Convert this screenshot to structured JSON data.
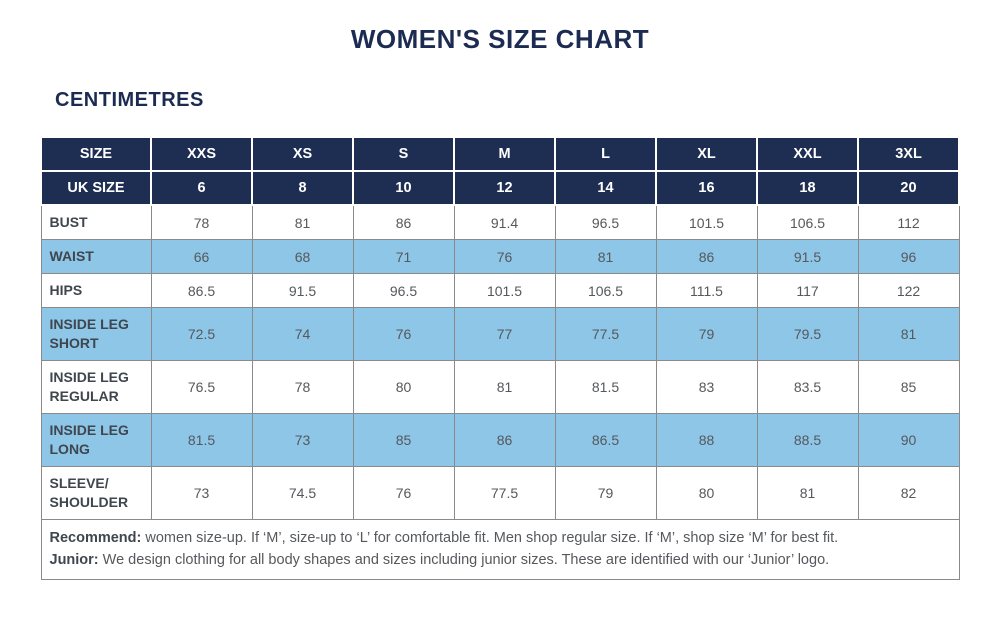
{
  "page": {
    "title": "WOMEN'S SIZE CHART",
    "subtitle": "CENTIMETRES"
  },
  "colors": {
    "header_navy": "#1e2e52",
    "shaded_row_blue": "#8ec6e8",
    "border_gray": "#8a8a8a",
    "title_navy": "#1c2b51",
    "label_text": "#3f464e",
    "value_text": "#55585c"
  },
  "table": {
    "size_row_label": "SIZE",
    "uk_size_row_label": "UK SIZE",
    "sizes": [
      "XXS",
      "XS",
      "S",
      "M",
      "L",
      "XL",
      "XXL",
      "3XL"
    ],
    "uk_sizes": [
      "6",
      "8",
      "10",
      "12",
      "14",
      "16",
      "18",
      "20"
    ],
    "rows": [
      {
        "label": "BUST",
        "shaded": false,
        "values": [
          "78",
          "81",
          "86",
          "91.4",
          "96.5",
          "101.5",
          "106.5",
          "112"
        ]
      },
      {
        "label": "WAIST",
        "shaded": true,
        "values": [
          "66",
          "68",
          "71",
          "76",
          "81",
          "86",
          "91.5",
          "96"
        ]
      },
      {
        "label": "HIPS",
        "shaded": false,
        "values": [
          "86.5",
          "91.5",
          "96.5",
          "101.5",
          "106.5",
          "111.5",
          "117",
          "122"
        ]
      },
      {
        "label": "INSIDE LEG\nSHORT",
        "shaded": true,
        "values": [
          "72.5",
          "74",
          "76",
          "77",
          "77.5",
          "79",
          "79.5",
          "81"
        ]
      },
      {
        "label": "INSIDE LEG\nREGULAR",
        "shaded": false,
        "values": [
          "76.5",
          "78",
          "80",
          "81",
          "81.5",
          "83",
          "83.5",
          "85"
        ]
      },
      {
        "label": "INSIDE LEG\nLONG",
        "shaded": true,
        "values": [
          "81.5",
          "73",
          "85",
          "86",
          "86.5",
          "88",
          "88.5",
          "90"
        ]
      },
      {
        "label": "SLEEVE/\nSHOULDER",
        "shaded": false,
        "values": [
          "73",
          "74.5",
          "76",
          "77.5",
          "79",
          "80",
          "81",
          "82"
        ]
      }
    ],
    "footer": [
      {
        "lead": "Recommend:",
        "text": " women size-up. If ‘M’, size-up to ‘L’ for comfortable fit. Men shop regular size. If ‘M’, shop size ‘M’ for best fit."
      },
      {
        "lead": "Junior:",
        "text": " We design clothing for all body shapes and sizes including junior sizes. These are identified with our ‘Junior’ logo."
      }
    ]
  }
}
